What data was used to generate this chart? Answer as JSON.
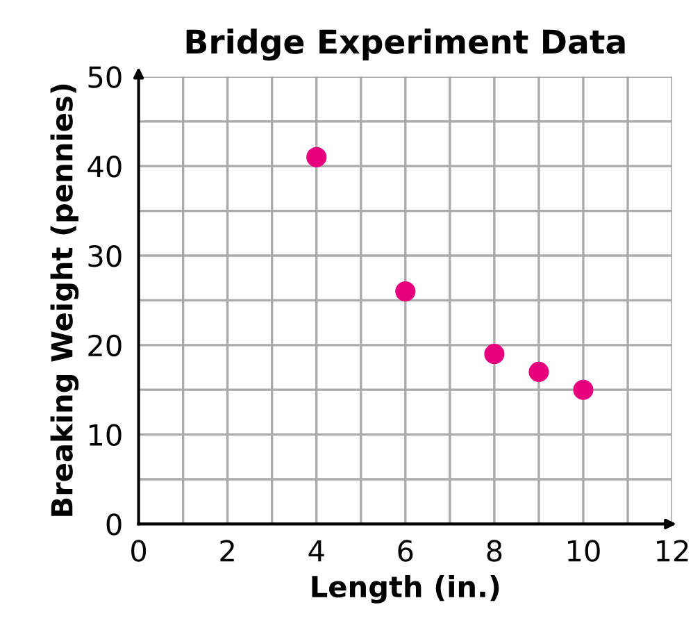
{
  "chart_data": {
    "type": "scatter",
    "title": "Bridge Experiment Data",
    "xlabel": "Length (in.)",
    "ylabel": "Breaking Weight (pennies)",
    "x": [
      4,
      6,
      8,
      9,
      10
    ],
    "values": [
      41,
      26,
      19,
      17,
      15
    ],
    "color": "#e6007e",
    "marker": "circle",
    "xlim": [
      0,
      12
    ],
    "ylim": [
      0,
      50
    ],
    "xticks": [
      0,
      {
        "value": 1,
        "label": null
      },
      2,
      {
        "value": 3,
        "label": null
      },
      4,
      {
        "value": 5,
        "label": null
      },
      6,
      {
        "value": 7,
        "label": null
      },
      8,
      {
        "value": 9,
        "label": null
      },
      10,
      {
        "value": 11,
        "label": null
      },
      12
    ],
    "yticks": [
      0,
      {
        "value": 5,
        "label": null
      },
      10,
      {
        "value": 15,
        "label": null
      },
      20,
      {
        "value": 25,
        "label": null
      },
      30,
      {
        "value": 35,
        "label": null
      },
      40,
      {
        "value": 45,
        "label": null
      },
      50
    ],
    "grid": true
  }
}
